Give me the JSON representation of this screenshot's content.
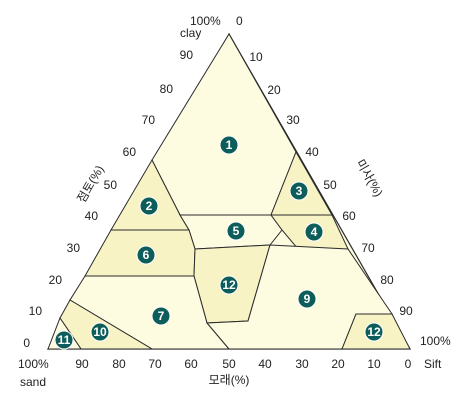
{
  "diagram": {
    "corner_labels": {
      "top": "clay",
      "bottom_left": "sand",
      "bottom_right": "Sift",
      "top_percent": "100%",
      "bottom_left_percent": "100%",
      "bottom_right_percent": "100%"
    },
    "axis_titles": {
      "left": "점토(%)",
      "right": "미사(%)",
      "bottom": "모래(%)"
    },
    "left_ticks": [
      "90",
      "80",
      "70",
      "60",
      "50",
      "40",
      "30",
      "20",
      "10",
      "0"
    ],
    "right_ticks": [
      "0",
      "10",
      "20",
      "30",
      "40",
      "50",
      "60",
      "70",
      "80",
      "90"
    ],
    "bottom_ticks": [
      "90",
      "80",
      "70",
      "60",
      "50",
      "40",
      "30",
      "20",
      "10",
      "0"
    ],
    "zones": [
      "1",
      "2",
      "3",
      "4",
      "5",
      "6",
      "12",
      "7",
      "9",
      "10",
      "11",
      "12"
    ],
    "colors": {
      "fill_light": "#fdfbe0",
      "fill_dark": "#f7f3c4",
      "marker": "#0d5d5a",
      "line": "#2b2b2b"
    }
  }
}
